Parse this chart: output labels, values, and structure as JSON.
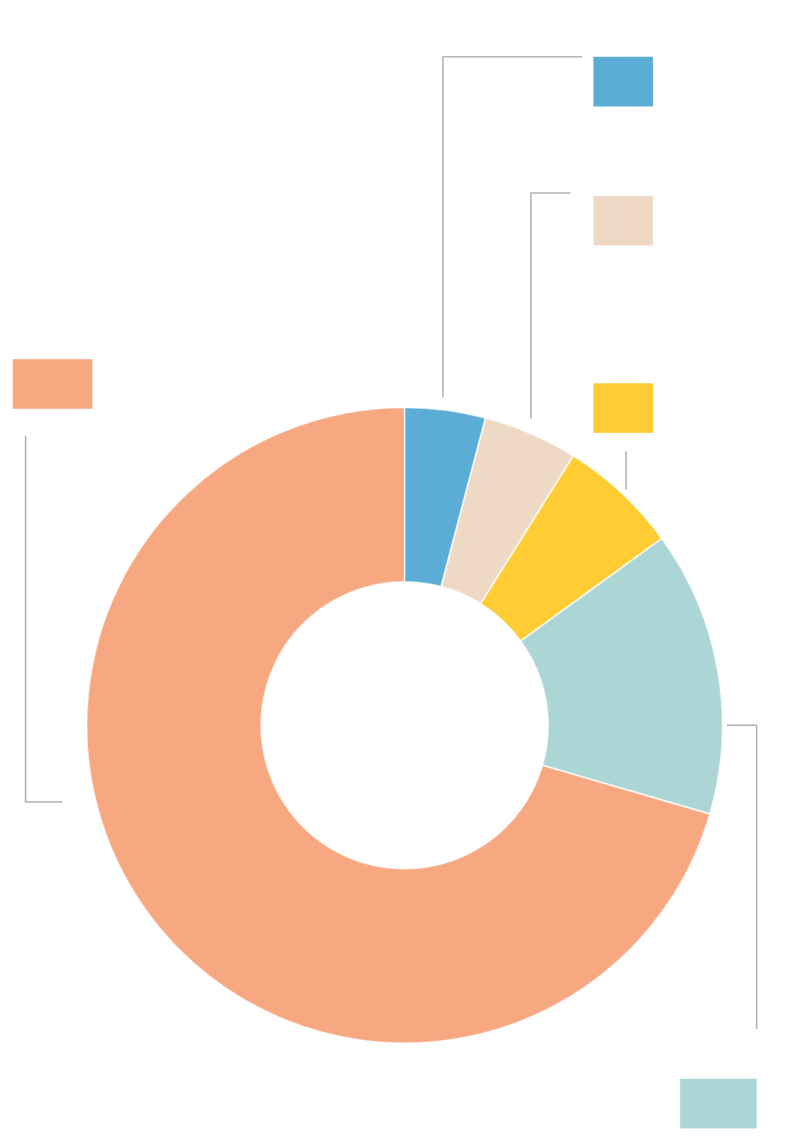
{
  "chart_data": {
    "type": "donut",
    "categories": [
      null,
      null,
      null,
      null,
      null
    ],
    "values": [
      4.1,
      4.8,
      6.1,
      14.5,
      70.5
    ],
    "colors": [
      "#5badd6",
      "#eed9c4",
      "#ffcc33",
      "#acd6d6",
      "#f7a881"
    ]
  }
}
